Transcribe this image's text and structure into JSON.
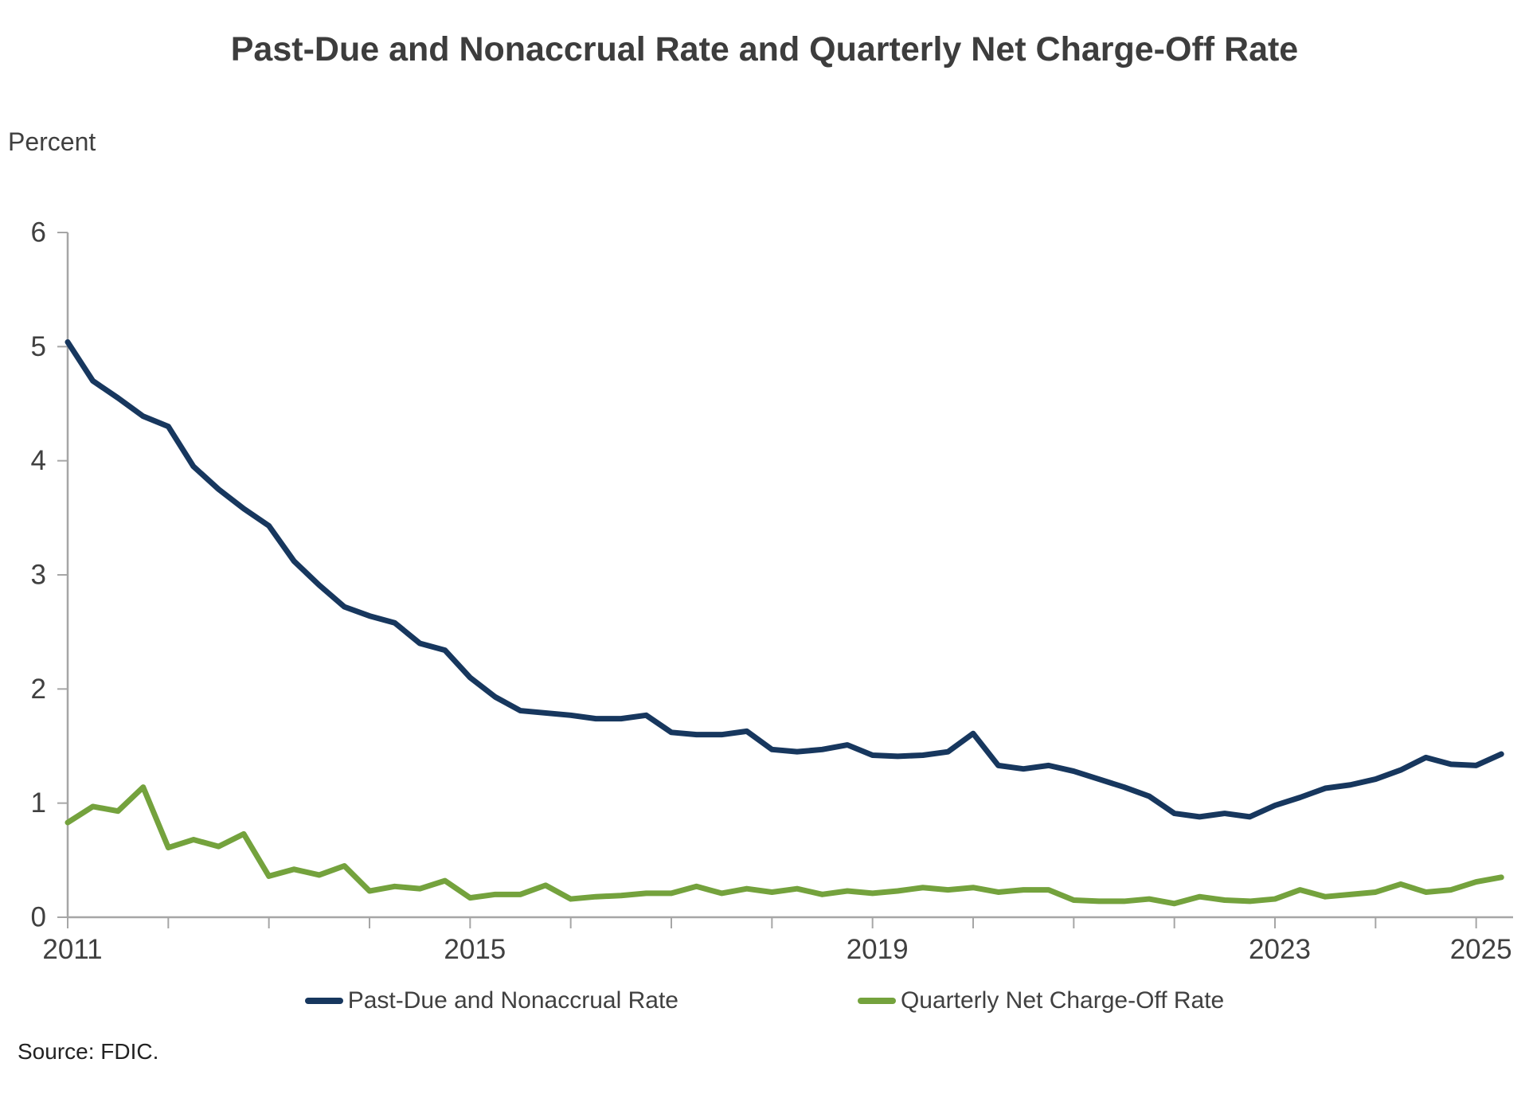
{
  "page": {
    "title": "Past-Due and Nonaccrual Rate and Quarterly Net Charge-Off Rate",
    "y_unit_label": "Percent",
    "source_note": "Source: FDIC."
  },
  "legend": {
    "items": [
      {
        "key": "past-due-nonaccrual",
        "label": "Past-Due and Nonaccrual Rate",
        "color": "#17375E"
      },
      {
        "key": "net-charge-off",
        "label": "Quarterly Net Charge-Off Rate",
        "color": "#74A23D"
      }
    ]
  },
  "chart_data": {
    "type": "line",
    "title": "Past-Due and Nonaccrual Rate and Quarterly Net Charge-Off Rate",
    "ylabel": "Percent",
    "xlabel": "",
    "grid": false,
    "legend_position": "bottom",
    "ylim": [
      0,
      6
    ],
    "y_ticks": [
      0,
      1,
      2,
      3,
      4,
      5,
      6
    ],
    "x_axis_tick_years": [
      2011,
      2012,
      2013,
      2014,
      2015,
      2016,
      2017,
      2018,
      2019,
      2020,
      2021,
      2022,
      2023,
      2024,
      2025
    ],
    "x_axis_labeled_years": [
      2011,
      2015,
      2019,
      2023,
      2025
    ],
    "frequency": "quarterly",
    "x": [
      "2011Q1",
      "2011Q2",
      "2011Q3",
      "2011Q4",
      "2012Q1",
      "2012Q2",
      "2012Q3",
      "2012Q4",
      "2013Q1",
      "2013Q2",
      "2013Q3",
      "2013Q4",
      "2014Q1",
      "2014Q2",
      "2014Q3",
      "2014Q4",
      "2015Q1",
      "2015Q2",
      "2015Q3",
      "2015Q4",
      "2016Q1",
      "2016Q2",
      "2016Q3",
      "2016Q4",
      "2017Q1",
      "2017Q2",
      "2017Q3",
      "2017Q4",
      "2018Q1",
      "2018Q2",
      "2018Q3",
      "2018Q4",
      "2019Q1",
      "2019Q2",
      "2019Q3",
      "2019Q4",
      "2020Q1",
      "2020Q2",
      "2020Q3",
      "2020Q4",
      "2021Q1",
      "2021Q2",
      "2021Q3",
      "2021Q4",
      "2022Q1",
      "2022Q2",
      "2022Q3",
      "2022Q4",
      "2023Q1",
      "2023Q2",
      "2023Q3",
      "2023Q4",
      "2024Q1",
      "2024Q2",
      "2024Q3",
      "2024Q4",
      "2025Q1",
      "2025Q2"
    ],
    "series": [
      {
        "name": "Past-Due and Nonaccrual Rate",
        "key": "past-due-nonaccrual",
        "color": "#17375E",
        "values": [
          5.04,
          4.7,
          4.55,
          4.39,
          4.3,
          3.95,
          3.75,
          3.58,
          3.43,
          3.12,
          2.91,
          2.72,
          2.64,
          2.58,
          2.4,
          2.34,
          2.1,
          1.93,
          1.81,
          1.79,
          1.77,
          1.74,
          1.74,
          1.77,
          1.62,
          1.6,
          1.6,
          1.63,
          1.47,
          1.45,
          1.47,
          1.51,
          1.42,
          1.41,
          1.42,
          1.45,
          1.61,
          1.33,
          1.3,
          1.33,
          1.28,
          1.21,
          1.14,
          1.06,
          0.91,
          0.88,
          0.91,
          0.88,
          0.98,
          1.05,
          1.13,
          1.16,
          1.21,
          1.29,
          1.4,
          1.34,
          1.33,
          1.43
        ]
      },
      {
        "name": "Quarterly Net Charge-Off Rate",
        "key": "net-charge-off",
        "color": "#74A23D",
        "values": [
          0.83,
          0.97,
          0.93,
          1.14,
          0.61,
          0.68,
          0.62,
          0.73,
          0.36,
          0.42,
          0.37,
          0.45,
          0.23,
          0.27,
          0.25,
          0.32,
          0.17,
          0.2,
          0.2,
          0.28,
          0.16,
          0.18,
          0.19,
          0.21,
          0.21,
          0.27,
          0.21,
          0.25,
          0.22,
          0.25,
          0.2,
          0.23,
          0.21,
          0.23,
          0.26,
          0.24,
          0.26,
          0.22,
          0.24,
          0.24,
          0.15,
          0.14,
          0.14,
          0.16,
          0.12,
          0.18,
          0.15,
          0.14,
          0.16,
          0.24,
          0.18,
          0.2,
          0.22,
          0.29,
          0.22,
          0.24,
          0.31,
          0.35
        ]
      }
    ],
    "axis_color": "#a6a6a6",
    "tick_label_color": "#404040",
    "tick_label_font_size": 35
  }
}
